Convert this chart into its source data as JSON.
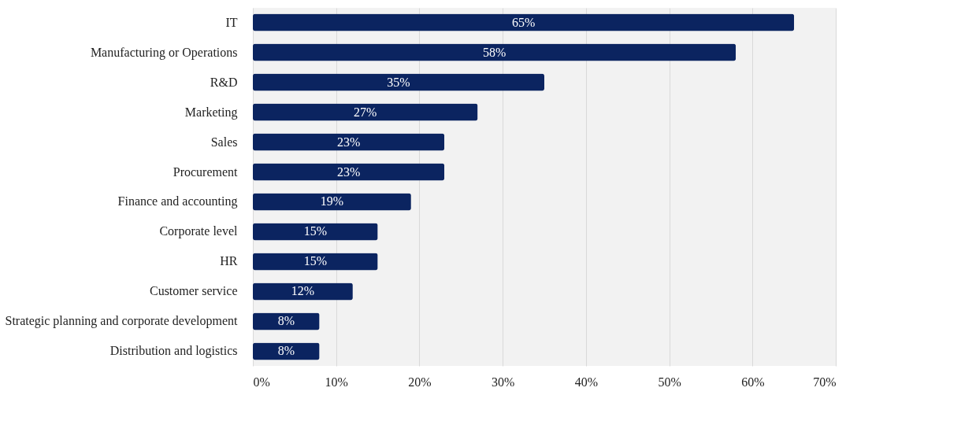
{
  "chart_data": {
    "type": "bar",
    "orientation": "horizontal",
    "categories": [
      "IT",
      "Manufacturing or Operations",
      "R&D",
      "Marketing",
      "Sales",
      "Procurement",
      "Finance and accounting",
      "Corporate level",
      "HR",
      "Customer service",
      "Strategic planning and corporate development",
      "Distribution and logistics"
    ],
    "values": [
      65,
      58,
      35,
      27,
      23,
      23,
      19,
      15,
      15,
      12,
      8,
      8
    ],
    "value_labels": [
      "65%",
      "58%",
      "35%",
      "27%",
      "23%",
      "23%",
      "19%",
      "15%",
      "15%",
      "12%",
      "8%",
      "8%"
    ],
    "color": "#0b2460",
    "xlim": [
      0,
      70
    ],
    "xticks": [
      {
        "value": 0,
        "label": "0%"
      },
      {
        "value": 10,
        "label": "10%"
      },
      {
        "value": 20,
        "label": "20%"
      },
      {
        "value": 30,
        "label": "30%"
      },
      {
        "value": 40,
        "label": "40%"
      },
      {
        "value": 50,
        "label": "50%"
      },
      {
        "value": 60,
        "label": "60%"
      },
      {
        "value": 70,
        "label": "70%"
      }
    ],
    "grid": "x"
  }
}
